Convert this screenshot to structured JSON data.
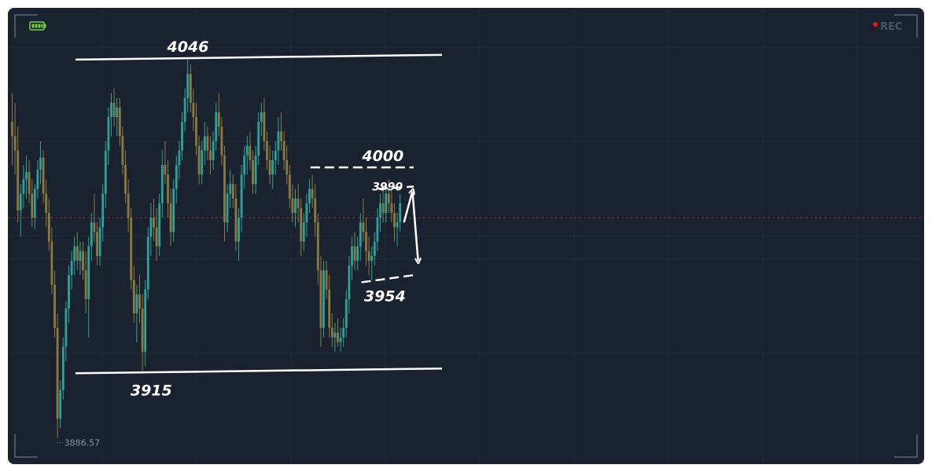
{
  "chart_data": {
    "type": "candlestick",
    "theme": {
      "background": "#1a2230",
      "grid": "#222c3b",
      "up_color": "#2ba39a",
      "down_color": "#8c7a3e",
      "annotation_color": "#ffffff",
      "midline_color": "#7a3a3a"
    },
    "ylim": [
      3880,
      4065
    ],
    "grid": true,
    "candles": [
      {
        "o": 4020,
        "h": 4032,
        "l": 4002,
        "c": 4014
      },
      {
        "o": 4014,
        "h": 4028,
        "l": 3998,
        "c": 4008
      },
      {
        "o": 4008,
        "h": 4018,
        "l": 3978,
        "c": 3983
      },
      {
        "o": 3983,
        "h": 3994,
        "l": 3972,
        "c": 3990
      },
      {
        "o": 3990,
        "h": 4002,
        "l": 3984,
        "c": 3996
      },
      {
        "o": 3996,
        "h": 4006,
        "l": 3988,
        "c": 3999
      },
      {
        "o": 3999,
        "h": 4004,
        "l": 3986,
        "c": 3990
      },
      {
        "o": 3990,
        "h": 3996,
        "l": 3976,
        "c": 3980
      },
      {
        "o": 3980,
        "h": 3994,
        "l": 3975,
        "c": 3992
      },
      {
        "o": 3992,
        "h": 4004,
        "l": 3988,
        "c": 4000
      },
      {
        "o": 4000,
        "h": 4012,
        "l": 3994,
        "c": 4005
      },
      {
        "o": 4005,
        "h": 4008,
        "l": 3986,
        "c": 3990
      },
      {
        "o": 3990,
        "h": 3996,
        "l": 3976,
        "c": 3982
      },
      {
        "o": 3982,
        "h": 3988,
        "l": 3966,
        "c": 3970
      },
      {
        "o": 3970,
        "h": 3976,
        "l": 3948,
        "c": 3952
      },
      {
        "o": 3952,
        "h": 3958,
        "l": 3930,
        "c": 3934
      },
      {
        "o": 3934,
        "h": 3940,
        "l": 3888,
        "c": 3896
      },
      {
        "o": 3896,
        "h": 3912,
        "l": 3892,
        "c": 3908
      },
      {
        "o": 3908,
        "h": 3930,
        "l": 3904,
        "c": 3926
      },
      {
        "o": 3926,
        "h": 3945,
        "l": 3920,
        "c": 3942
      },
      {
        "o": 3942,
        "h": 3960,
        "l": 3936,
        "c": 3956
      },
      {
        "o": 3956,
        "h": 3966,
        "l": 3950,
        "c": 3962
      },
      {
        "o": 3962,
        "h": 3972,
        "l": 3956,
        "c": 3968
      },
      {
        "o": 3968,
        "h": 3974,
        "l": 3958,
        "c": 3962
      },
      {
        "o": 3962,
        "h": 3970,
        "l": 3956,
        "c": 3966
      },
      {
        "o": 3966,
        "h": 3970,
        "l": 3954,
        "c": 3958
      },
      {
        "o": 3958,
        "h": 3966,
        "l": 3940,
        "c": 3946
      },
      {
        "o": 3946,
        "h": 3972,
        "l": 3930,
        "c": 3968
      },
      {
        "o": 3968,
        "h": 3982,
        "l": 3962,
        "c": 3978
      },
      {
        "o": 3978,
        "h": 3990,
        "l": 3970,
        "c": 3974
      },
      {
        "o": 3974,
        "h": 3978,
        "l": 3960,
        "c": 3964
      },
      {
        "o": 3964,
        "h": 3980,
        "l": 3960,
        "c": 3976
      },
      {
        "o": 3976,
        "h": 3994,
        "l": 3970,
        "c": 3990
      },
      {
        "o": 3990,
        "h": 4012,
        "l": 3984,
        "c": 4008
      },
      {
        "o": 4008,
        "h": 4026,
        "l": 4002,
        "c": 4022
      },
      {
        "o": 4022,
        "h": 4032,
        "l": 4014,
        "c": 4028
      },
      {
        "o": 4028,
        "h": 4034,
        "l": 4018,
        "c": 4022
      },
      {
        "o": 4022,
        "h": 4030,
        "l": 4014,
        "c": 4026
      },
      {
        "o": 4026,
        "h": 4030,
        "l": 4010,
        "c": 4014
      },
      {
        "o": 4014,
        "h": 4018,
        "l": 3998,
        "c": 4002
      },
      {
        "o": 4002,
        "h": 4008,
        "l": 3986,
        "c": 3990
      },
      {
        "o": 3990,
        "h": 3996,
        "l": 3974,
        "c": 3980
      },
      {
        "o": 3980,
        "h": 3984,
        "l": 3950,
        "c": 3954
      },
      {
        "o": 3954,
        "h": 3960,
        "l": 3936,
        "c": 3940
      },
      {
        "o": 3940,
        "h": 3952,
        "l": 3928,
        "c": 3948
      },
      {
        "o": 3948,
        "h": 3956,
        "l": 3936,
        "c": 3942
      },
      {
        "o": 3942,
        "h": 3948,
        "l": 3916,
        "c": 3924
      },
      {
        "o": 3924,
        "h": 3954,
        "l": 3918,
        "c": 3950
      },
      {
        "o": 3950,
        "h": 3976,
        "l": 3946,
        "c": 3972
      },
      {
        "o": 3972,
        "h": 3986,
        "l": 3964,
        "c": 3980
      },
      {
        "o": 3980,
        "h": 3988,
        "l": 3970,
        "c": 3976
      },
      {
        "o": 3976,
        "h": 3984,
        "l": 3962,
        "c": 3968
      },
      {
        "o": 3968,
        "h": 3990,
        "l": 3964,
        "c": 3986
      },
      {
        "o": 3986,
        "h": 4008,
        "l": 3980,
        "c": 4002
      },
      {
        "o": 4002,
        "h": 4012,
        "l": 3994,
        "c": 3998
      },
      {
        "o": 3998,
        "h": 4004,
        "l": 3980,
        "c": 3986
      },
      {
        "o": 3986,
        "h": 3992,
        "l": 3968,
        "c": 3974
      },
      {
        "o": 3974,
        "h": 3996,
        "l": 3970,
        "c": 3992
      },
      {
        "o": 3992,
        "h": 4006,
        "l": 3986,
        "c": 4002
      },
      {
        "o": 4002,
        "h": 4012,
        "l": 3996,
        "c": 4008
      },
      {
        "o": 4008,
        "h": 4024,
        "l": 4004,
        "c": 4020
      },
      {
        "o": 4020,
        "h": 4034,
        "l": 4016,
        "c": 4030
      },
      {
        "o": 4030,
        "h": 4046,
        "l": 4024,
        "c": 4040
      },
      {
        "o": 4040,
        "h": 4044,
        "l": 4024,
        "c": 4028
      },
      {
        "o": 4028,
        "h": 4034,
        "l": 4016,
        "c": 4022
      },
      {
        "o": 4022,
        "h": 4028,
        "l": 4006,
        "c": 4010
      },
      {
        "o": 4010,
        "h": 4014,
        "l": 3994,
        "c": 3998
      },
      {
        "o": 3998,
        "h": 4012,
        "l": 3994,
        "c": 4008
      },
      {
        "o": 4008,
        "h": 4020,
        "l": 4002,
        "c": 4014
      },
      {
        "o": 4014,
        "h": 4018,
        "l": 4004,
        "c": 4008
      },
      {
        "o": 4008,
        "h": 4014,
        "l": 3998,
        "c": 4004
      },
      {
        "o": 4004,
        "h": 4016,
        "l": 4000,
        "c": 4012
      },
      {
        "o": 4012,
        "h": 4028,
        "l": 4008,
        "c": 4024
      },
      {
        "o": 4024,
        "h": 4032,
        "l": 4014,
        "c": 4018
      },
      {
        "o": 4018,
        "h": 4022,
        "l": 4002,
        "c": 4006
      },
      {
        "o": 4006,
        "h": 4010,
        "l": 3970,
        "c": 3978
      },
      {
        "o": 3978,
        "h": 3994,
        "l": 3974,
        "c": 3990
      },
      {
        "o": 3990,
        "h": 4000,
        "l": 3984,
        "c": 3994
      },
      {
        "o": 3994,
        "h": 3998,
        "l": 3984,
        "c": 3988
      },
      {
        "o": 3988,
        "h": 3994,
        "l": 3966,
        "c": 3970
      },
      {
        "o": 3970,
        "h": 3984,
        "l": 3962,
        "c": 3980
      },
      {
        "o": 3980,
        "h": 4002,
        "l": 3974,
        "c": 3998
      },
      {
        "o": 3998,
        "h": 4010,
        "l": 3992,
        "c": 4006
      },
      {
        "o": 4006,
        "h": 4014,
        "l": 3998,
        "c": 4010
      },
      {
        "o": 4010,
        "h": 4016,
        "l": 4000,
        "c": 4004
      },
      {
        "o": 4004,
        "h": 4008,
        "l": 3990,
        "c": 3994
      },
      {
        "o": 3994,
        "h": 4010,
        "l": 3990,
        "c": 4006
      },
      {
        "o": 4006,
        "h": 4024,
        "l": 4002,
        "c": 4020
      },
      {
        "o": 4020,
        "h": 4028,
        "l": 4014,
        "c": 4024
      },
      {
        "o": 4024,
        "h": 4030,
        "l": 4008,
        "c": 4012
      },
      {
        "o": 4012,
        "h": 4016,
        "l": 4000,
        "c": 4004
      },
      {
        "o": 4004,
        "h": 4010,
        "l": 3994,
        "c": 3998
      },
      {
        "o": 3998,
        "h": 4008,
        "l": 3992,
        "c": 4004
      },
      {
        "o": 4004,
        "h": 4012,
        "l": 3998,
        "c": 4008
      },
      {
        "o": 4008,
        "h": 4022,
        "l": 4002,
        "c": 4016
      },
      {
        "o": 4016,
        "h": 4024,
        "l": 4008,
        "c": 4012
      },
      {
        "o": 4012,
        "h": 4016,
        "l": 4000,
        "c": 4004
      },
      {
        "o": 4004,
        "h": 4010,
        "l": 3994,
        "c": 3998
      },
      {
        "o": 3998,
        "h": 4002,
        "l": 3984,
        "c": 3988
      },
      {
        "o": 3988,
        "h": 3994,
        "l": 3978,
        "c": 3982
      },
      {
        "o": 3982,
        "h": 3992,
        "l": 3976,
        "c": 3988
      },
      {
        "o": 3988,
        "h": 3994,
        "l": 3978,
        "c": 3984
      },
      {
        "o": 3984,
        "h": 3988,
        "l": 3964,
        "c": 3970
      },
      {
        "o": 3970,
        "h": 3982,
        "l": 3966,
        "c": 3978
      },
      {
        "o": 3978,
        "h": 3990,
        "l": 3972,
        "c": 3986
      },
      {
        "o": 3986,
        "h": 3996,
        "l": 3982,
        "c": 3992
      },
      {
        "o": 3992,
        "h": 3998,
        "l": 3984,
        "c": 3988
      },
      {
        "o": 3988,
        "h": 3994,
        "l": 3972,
        "c": 3978
      },
      {
        "o": 3978,
        "h": 3982,
        "l": 3952,
        "c": 3958
      },
      {
        "o": 3958,
        "h": 3964,
        "l": 3926,
        "c": 3934
      },
      {
        "o": 3934,
        "h": 3962,
        "l": 3930,
        "c": 3958
      },
      {
        "o": 3958,
        "h": 3962,
        "l": 3946,
        "c": 3950
      },
      {
        "o": 3950,
        "h": 3956,
        "l": 3930,
        "c": 3934
      },
      {
        "o": 3934,
        "h": 3940,
        "l": 3926,
        "c": 3930
      },
      {
        "o": 3930,
        "h": 3936,
        "l": 3924,
        "c": 3932
      },
      {
        "o": 3932,
        "h": 3938,
        "l": 3926,
        "c": 3928
      },
      {
        "o": 3928,
        "h": 3934,
        "l": 3924,
        "c": 3930
      },
      {
        "o": 3930,
        "h": 3938,
        "l": 3926,
        "c": 3934
      },
      {
        "o": 3934,
        "h": 3950,
        "l": 3930,
        "c": 3946
      },
      {
        "o": 3946,
        "h": 3964,
        "l": 3940,
        "c": 3960
      },
      {
        "o": 3960,
        "h": 3972,
        "l": 3954,
        "c": 3968
      },
      {
        "o": 3968,
        "h": 3974,
        "l": 3958,
        "c": 3962
      },
      {
        "o": 3962,
        "h": 3972,
        "l": 3958,
        "c": 3968
      },
      {
        "o": 3968,
        "h": 3982,
        "l": 3962,
        "c": 3978
      },
      {
        "o": 3978,
        "h": 3988,
        "l": 3970,
        "c": 3974
      },
      {
        "o": 3974,
        "h": 3980,
        "l": 3960,
        "c": 3966
      },
      {
        "o": 3966,
        "h": 3972,
        "l": 3956,
        "c": 3962
      },
      {
        "o": 3962,
        "h": 3968,
        "l": 3954,
        "c": 3964
      },
      {
        "o": 3964,
        "h": 3974,
        "l": 3960,
        "c": 3970
      },
      {
        "o": 3970,
        "h": 3984,
        "l": 3966,
        "c": 3980
      },
      {
        "o": 3980,
        "h": 3990,
        "l": 3974,
        "c": 3986
      },
      {
        "o": 3986,
        "h": 3994,
        "l": 3978,
        "c": 3982
      },
      {
        "o": 3982,
        "h": 3994,
        "l": 3978,
        "c": 3990
      },
      {
        "o": 3990,
        "h": 3996,
        "l": 3982,
        "c": 3986
      },
      {
        "o": 3986,
        "h": 3992,
        "l": 3978,
        "c": 3982
      },
      {
        "o": 3982,
        "h": 3986,
        "l": 3970,
        "c": 3976
      },
      {
        "o": 3976,
        "h": 3982,
        "l": 3968,
        "c": 3978
      },
      {
        "o": 3978,
        "h": 3990,
        "l": 3974,
        "c": 3986
      }
    ],
    "levels": [
      {
        "label": "4046",
        "style": "solid",
        "start": 20,
        "end": 150,
        "y_start": 4046,
        "y_end": 4048
      },
      {
        "label": "3915",
        "style": "solid",
        "start": 20,
        "end": 150,
        "y_start": 3915,
        "y_end": 3917
      },
      {
        "label": "4000",
        "style": "dashed",
        "start": 103,
        "end": 140,
        "y_start": 4001,
        "y_end": 4001
      },
      {
        "label": "3990",
        "style": "dashed",
        "start": 127,
        "end": 140,
        "y_start": 3992,
        "y_end": 3993
      },
      {
        "label": "3954",
        "style": "dashed",
        "start": 121,
        "end": 140,
        "y_start": 3953,
        "y_end": 3956
      }
    ],
    "min_label": "3886.57",
    "min_index": 16,
    "projection": [
      {
        "index": 136,
        "value": 3978
      },
      {
        "index": 139,
        "value": 3991
      },
      {
        "index": 141,
        "value": 3962
      }
    ],
    "midline_value": 3980
  },
  "hud": {
    "rec_label": "REC",
    "battery": "battery-icon",
    "rec_dot_color": "#e11b1b"
  }
}
